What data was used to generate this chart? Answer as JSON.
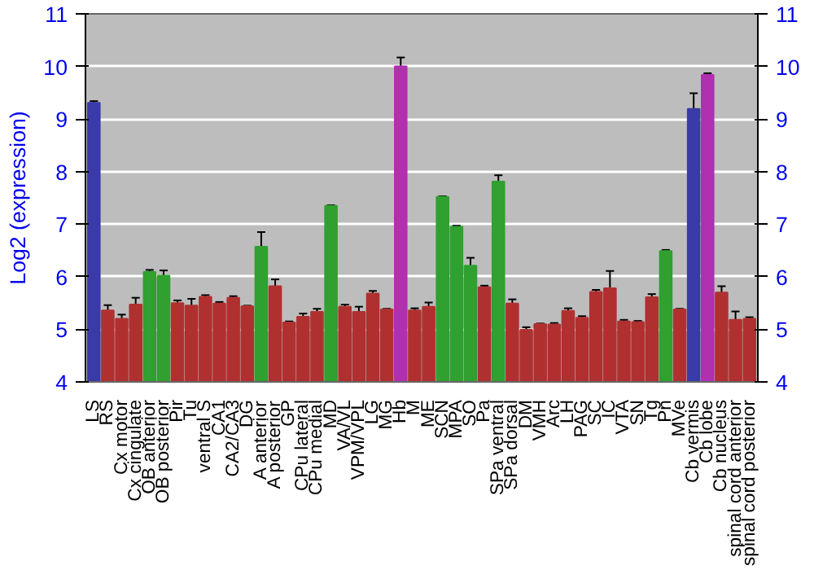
{
  "chart_data": {
    "type": "bar",
    "ylabel": "Log2 (expression)",
    "categories": [
      "LS",
      "RS",
      "Cx motor",
      "Cx cingulate",
      "OB anterior",
      "OB posterior",
      "Pir",
      "Tu",
      "ventral S",
      "CA1",
      "CA2/CA3",
      "DG",
      "A anterior",
      "A posterior",
      "GP",
      "CPu lateral",
      "CPu medial",
      "MD",
      "VA/VL",
      "VPM/VPL",
      "LG",
      "MG",
      "Hb",
      "M",
      "ME",
      "SCN",
      "MPA",
      "SO",
      "Pa",
      "SPa ventral",
      "SPa dorsal",
      "DM",
      "VMH",
      "Arc",
      "LH",
      "PAG",
      "SC",
      "IC",
      "VTA",
      "SN",
      "Tg",
      "Pn",
      "MVe",
      "Cb vermis",
      "Cb lobe",
      "Cb nucleus",
      "spinal cord anterior",
      "spinal cord posterior"
    ],
    "values": [
      9.31,
      5.36,
      5.2,
      5.47,
      6.09,
      6.02,
      5.5,
      5.45,
      5.62,
      5.49,
      5.6,
      5.44,
      6.57,
      5.82,
      5.13,
      5.24,
      5.33,
      7.35,
      5.43,
      5.33,
      5.68,
      5.38,
      10.0,
      5.36,
      5.43,
      7.52,
      6.95,
      6.21,
      5.8,
      7.81,
      5.49,
      4.99,
      5.1,
      5.09,
      5.35,
      5.22,
      5.71,
      5.78,
      5.15,
      5.14,
      5.61,
      6.49,
      5.38,
      9.19,
      9.84,
      5.7,
      5.18,
      5.2
    ],
    "errors": [
      0.03,
      0.1,
      0.08,
      0.13,
      0.04,
      0.1,
      0.05,
      0.13,
      0.03,
      0.03,
      0.03,
      0.01,
      0.28,
      0.13,
      0.02,
      0.06,
      0.06,
      0.01,
      0.04,
      0.1,
      0.05,
      0.01,
      0.17,
      0.04,
      0.08,
      0.01,
      0.02,
      0.15,
      0.03,
      0.12,
      0.08,
      0.05,
      0.01,
      0.03,
      0.05,
      0.03,
      0.04,
      0.33,
      0.03,
      0.02,
      0.06,
      0.02,
      0.01,
      0.3,
      0.03,
      0.12,
      0.16,
      0.03
    ],
    "colors": [
      "#3a3aa8",
      "#b03030",
      "#b03030",
      "#b03030",
      "#30a030",
      "#30a030",
      "#b03030",
      "#b03030",
      "#b03030",
      "#b03030",
      "#b03030",
      "#b03030",
      "#30a030",
      "#b03030",
      "#b03030",
      "#b03030",
      "#b03030",
      "#30a030",
      "#b03030",
      "#b03030",
      "#b03030",
      "#b03030",
      "#b030b0",
      "#b03030",
      "#b03030",
      "#30a030",
      "#30a030",
      "#30a030",
      "#b03030",
      "#30a030",
      "#b03030",
      "#b03030",
      "#b03030",
      "#b03030",
      "#b03030",
      "#b03030",
      "#b03030",
      "#b03030",
      "#b03030",
      "#b03030",
      "#b03030",
      "#30a030",
      "#b03030",
      "#3a3aa8",
      "#b030b0",
      "#b03030",
      "#b03030",
      "#b03030"
    ],
    "ylim": [
      4,
      11
    ],
    "yticks": [
      4,
      5,
      6,
      7,
      8,
      9,
      10,
      11
    ],
    "y2lim": [
      4,
      11
    ],
    "y2ticks": [
      4,
      5,
      6,
      7,
      8,
      9,
      10,
      11
    ],
    "grid": "y"
  }
}
